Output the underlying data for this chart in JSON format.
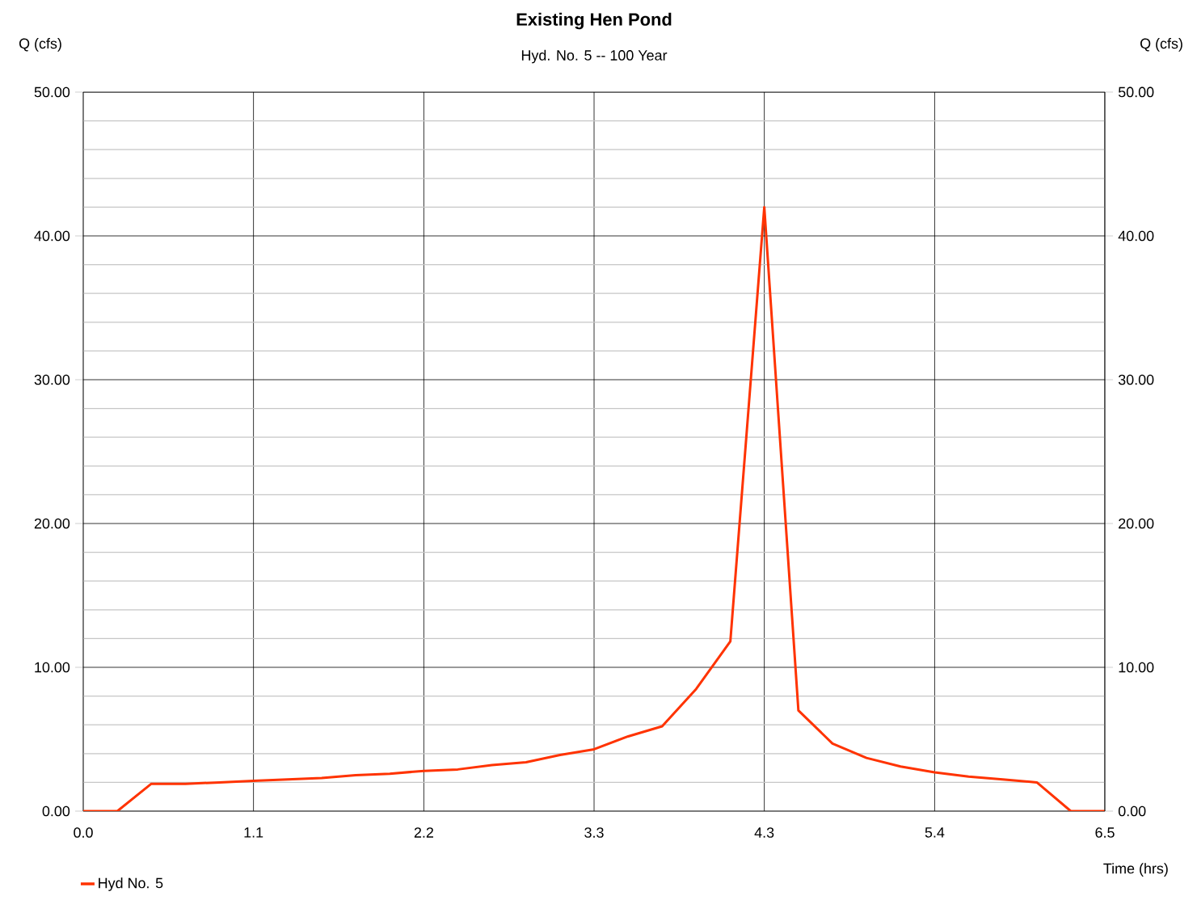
{
  "chart_data": {
    "type": "line",
    "title": "Existing Hen Pond",
    "subtitle": "Hyd. No. 5 -- 100 Year",
    "xlabel": "Time (hrs)",
    "ylabel": "Q (cfs)",
    "y2label": "Q (cfs)",
    "x": [
      0,
      0.217,
      0.433,
      0.65,
      0.867,
      1.083,
      1.3,
      1.517,
      1.733,
      1.95,
      2.167,
      2.383,
      2.6,
      2.817,
      3.033,
      3.25,
      3.467,
      3.683,
      3.9,
      4.117,
      4.333,
      4.55,
      4.767,
      4.983,
      5.2,
      5.417,
      5.633,
      5.85,
      6.067,
      6.283,
      6.5
    ],
    "series": [
      {
        "name": "Hyd No. 5",
        "color": "#ff3300",
        "values": [
          0,
          0,
          1.9,
          1.9,
          2.0,
          2.1,
          2.2,
          2.3,
          2.5,
          2.6,
          2.8,
          2.9,
          3.2,
          3.4,
          3.9,
          4.3,
          5.2,
          5.9,
          8.5,
          11.8,
          42.0,
          7.0,
          4.7,
          3.7,
          3.1,
          2.7,
          2.4,
          2.2,
          2.0,
          0,
          0
        ]
      }
    ],
    "xlim": [
      0,
      6.5
    ],
    "xticks": [
      {
        "value": 0,
        "label": "0.0"
      },
      {
        "value": 1.083,
        "label": "1.1"
      },
      {
        "value": 2.167,
        "label": "2.2"
      },
      {
        "value": 3.25,
        "label": "3.3"
      },
      {
        "value": 4.333,
        "label": "4.3"
      },
      {
        "value": 5.417,
        "label": "5.4"
      },
      {
        "value": 6.5,
        "label": "6.5"
      }
    ],
    "ylim": [
      0,
      50
    ],
    "yticks": [
      {
        "value": 0,
        "label": "0.00"
      },
      {
        "value": 10,
        "label": "10.00"
      },
      {
        "value": 20,
        "label": "20.00"
      },
      {
        "value": 30,
        "label": "30.00"
      },
      {
        "value": 40,
        "label": "40.00"
      },
      {
        "value": 50,
        "label": "50.00"
      }
    ],
    "y2lim": [
      0,
      50
    ],
    "y2ticks": [
      {
        "value": 0,
        "label": "0.00"
      },
      {
        "value": 10,
        "label": "10.00"
      },
      {
        "value": 20,
        "label": "20.00"
      },
      {
        "value": 30,
        "label": "30.00"
      },
      {
        "value": 40,
        "label": "40.00"
      },
      {
        "value": 50,
        "label": "50.00"
      }
    ],
    "grid": true,
    "legend": "bottom left",
    "marker": "none",
    "line_style": "solid"
  }
}
